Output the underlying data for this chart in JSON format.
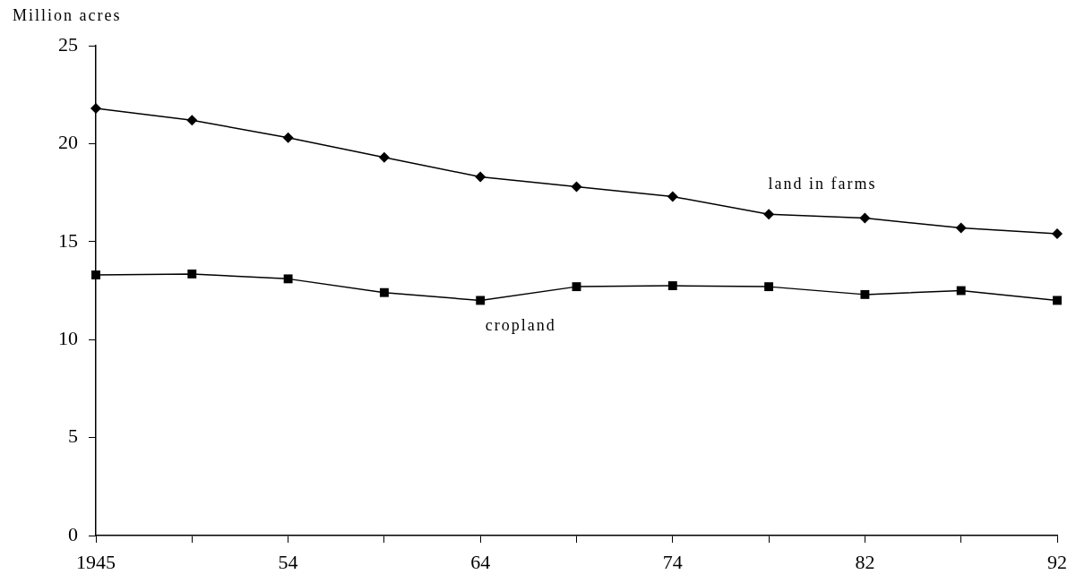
{
  "chart_data": {
    "type": "line",
    "ylabel": "Million acres",
    "categories": [
      "1945",
      null,
      "54",
      null,
      "64",
      null,
      "74",
      null,
      "82",
      null,
      "92"
    ],
    "series": [
      {
        "name": "land in farms",
        "color": "#000000",
        "marker": "diamond",
        "values": [
          21.8,
          21.2,
          20.3,
          19.3,
          18.3,
          17.8,
          17.3,
          16.4,
          16.2,
          15.7,
          15.4
        ]
      },
      {
        "name": "cropland",
        "color": "#000000",
        "marker": "square",
        "values": [
          13.3,
          13.35,
          13.1,
          12.4,
          12.0,
          12.7,
          12.75,
          12.7,
          12.3,
          12.5,
          12.0
        ]
      }
    ],
    "ylim": [
      0,
      25
    ],
    "yticks": [
      0,
      5,
      10,
      15,
      20,
      25
    ],
    "grid": false,
    "legend": false
  }
}
